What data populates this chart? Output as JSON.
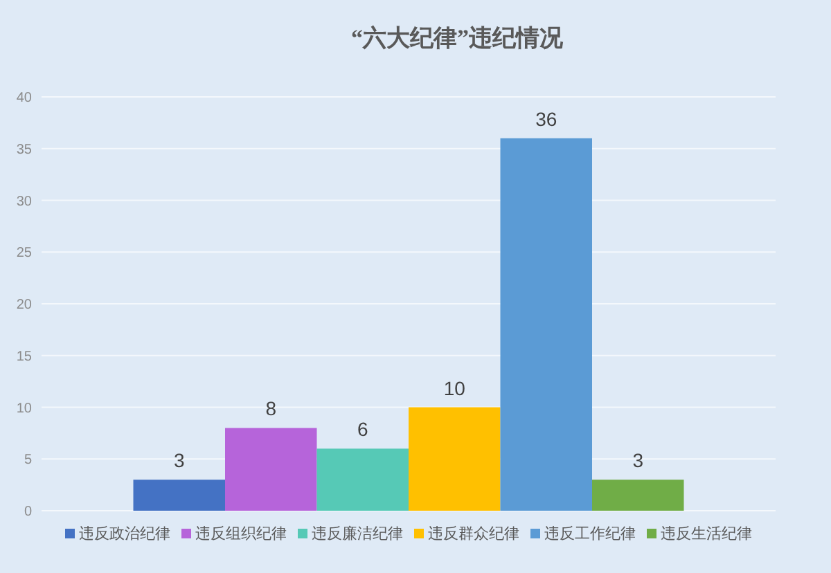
{
  "chart_data": {
    "type": "bar",
    "title": "“六大纪律”违纪情况",
    "categories": [
      null
    ],
    "series": [
      {
        "name": "违反政治纪律",
        "color": "#4472c4",
        "values": [
          3
        ]
      },
      {
        "name": "违反组织纪律",
        "color": "#b664da",
        "values": [
          8
        ]
      },
      {
        "name": "违反廉洁纪律",
        "color": "#56c9b6",
        "values": [
          6
        ]
      },
      {
        "name": "违反群众纪律",
        "color": "#ffc000",
        "values": [
          10
        ]
      },
      {
        "name": "违反工作纪律",
        "color": "#5b9bd5",
        "values": [
          36
        ]
      },
      {
        "name": "违反生活纪律",
        "color": "#70ad47",
        "values": [
          3
        ]
      }
    ],
    "ylim": [
      0,
      40
    ],
    "yticks": [
      0,
      5,
      10,
      15,
      20,
      25,
      30,
      35,
      40
    ],
    "grid": "y",
    "legend": "bottom",
    "data_labels": true
  }
}
